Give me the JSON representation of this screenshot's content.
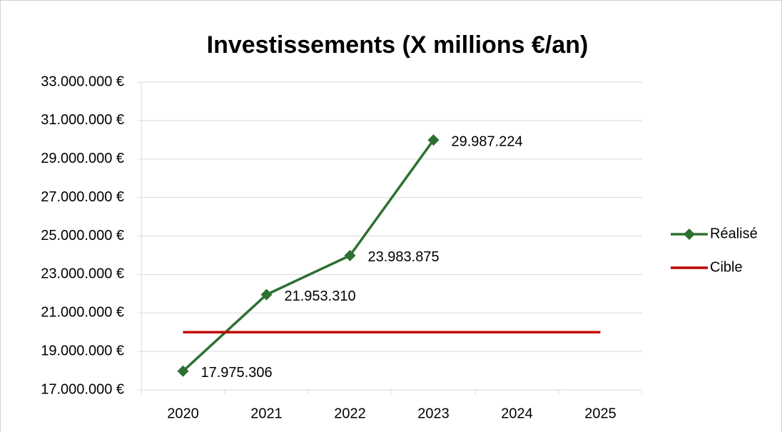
{
  "chart_data": {
    "type": "line",
    "title": "Investissements (X millions €/an)",
    "categories": [
      "2020",
      "2021",
      "2022",
      "2023",
      "2024",
      "2025"
    ],
    "series": [
      {
        "name": "Réalisé",
        "color": "#2e7031",
        "marker": "diamond",
        "values": [
          17975306,
          21953310,
          23983875,
          29987224,
          null,
          null
        ],
        "value_labels": [
          "17.975.306",
          "21.953.310",
          "23.983.875",
          "29.987.224",
          null,
          null
        ]
      },
      {
        "name": "Cible",
        "color": "#c00000",
        "marker": "none",
        "values": [
          20000000,
          20000000,
          20000000,
          20000000,
          20000000,
          20000000
        ]
      }
    ],
    "ylim": [
      17000000,
      33000000
    ],
    "yticks": [
      {
        "value": 17000000,
        "label": "17.000.000 €"
      },
      {
        "value": 19000000,
        "label": "19.000.000 €"
      },
      {
        "value": 21000000,
        "label": "21.000.000 €"
      },
      {
        "value": 23000000,
        "label": "23.000.000 €"
      },
      {
        "value": 25000000,
        "label": "25.000.000 €"
      },
      {
        "value": 27000000,
        "label": "27.000.000 €"
      },
      {
        "value": 29000000,
        "label": "29.000.000 €"
      },
      {
        "value": 31000000,
        "label": "31.000.000 €"
      },
      {
        "value": 33000000,
        "label": "33.000.000 €"
      }
    ],
    "grid": true,
    "legend": "right"
  }
}
